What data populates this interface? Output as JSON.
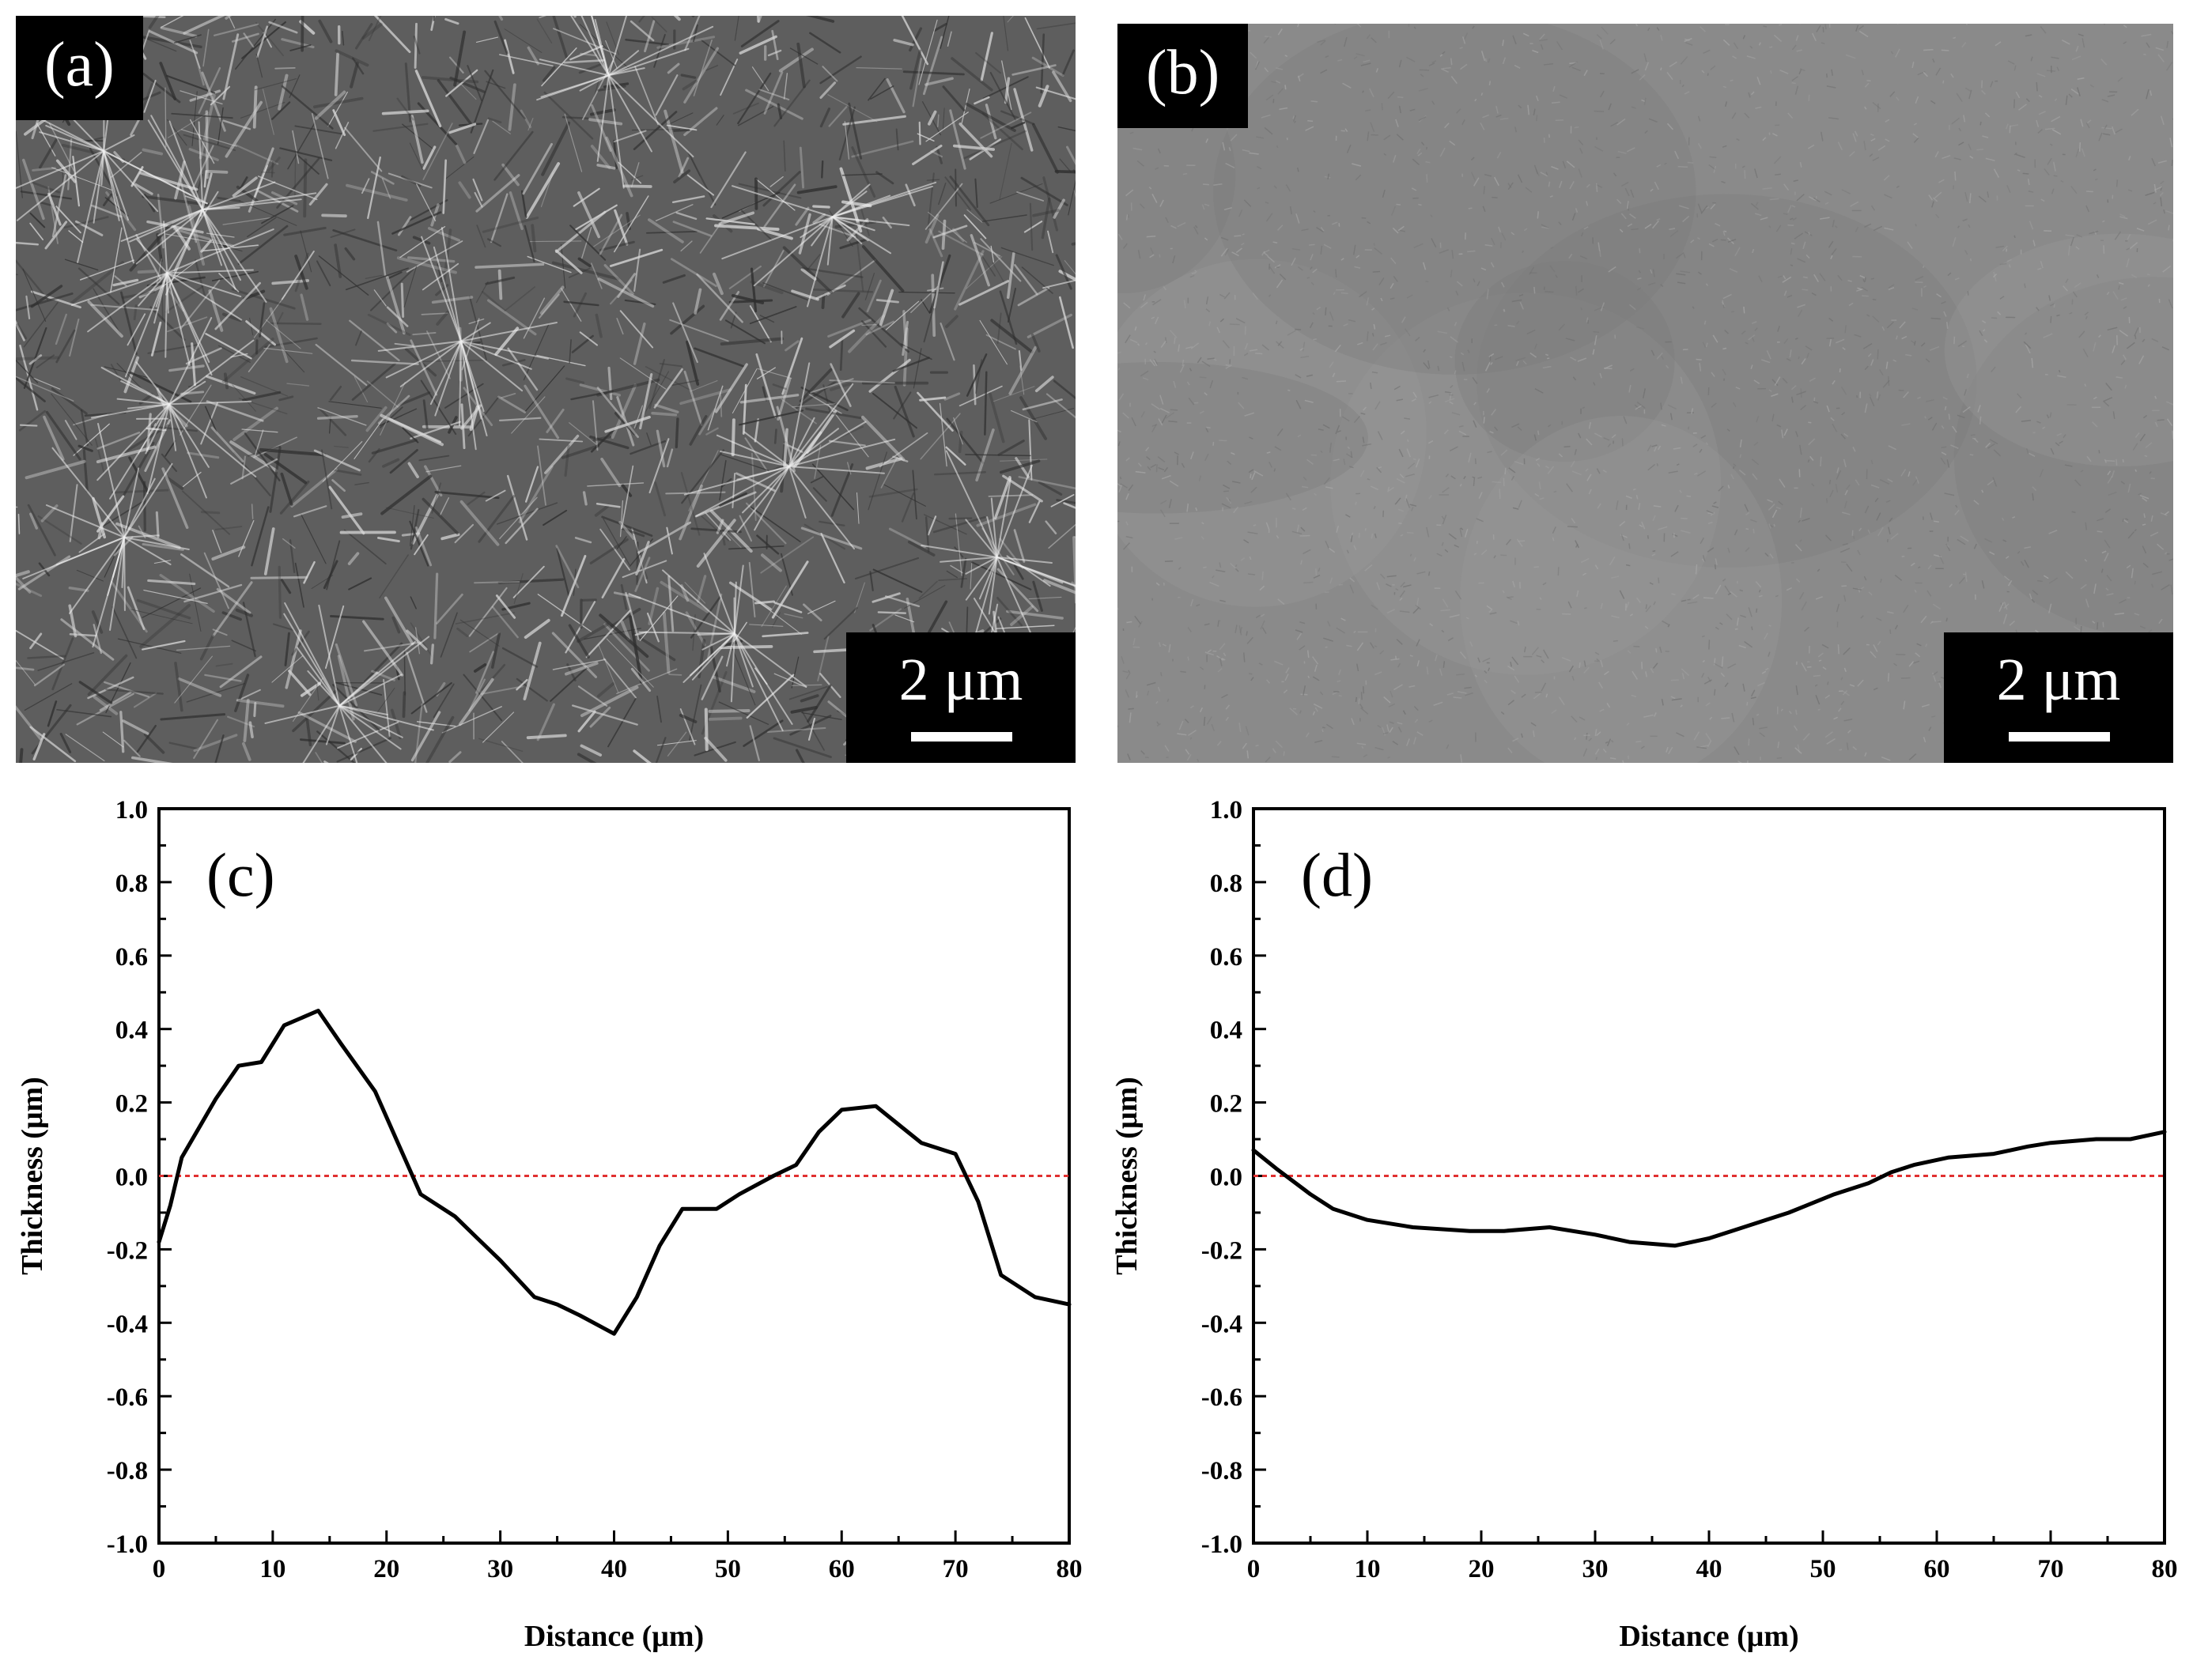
{
  "panels": {
    "a": {
      "label": "(a)",
      "scale_bar": "2 μm"
    },
    "b": {
      "label": "(b)",
      "scale_bar": "2 μm"
    }
  },
  "colors": {
    "line": "#000000",
    "reference_line": "#e03030"
  },
  "chart_data": [
    {
      "type": "line",
      "panel_label": "(c)",
      "xlabel": "Distance (μm)",
      "ylabel": "Thickness (μm)",
      "xlim": [
        0,
        80
      ],
      "ylim": [
        -1.0,
        1.0
      ],
      "x_ticks": [
        "0",
        "10",
        "20",
        "30",
        "40",
        "50",
        "60",
        "70",
        "80"
      ],
      "y_ticks": [
        "1.0",
        "0.8",
        "0.6",
        "0.4",
        "0.2",
        "0.0",
        "-0.2",
        "-0.4",
        "-0.6",
        "-0.8",
        "-1.0"
      ],
      "reference_line_y": 0.0,
      "grid": false,
      "series": [
        {
          "x": [
            0,
            1,
            2,
            5,
            7,
            9,
            11,
            14,
            16,
            19,
            21,
            23,
            26,
            28,
            30,
            33,
            35,
            37,
            40,
            42,
            44,
            46,
            49,
            51,
            54,
            56,
            58,
            60,
            63,
            65,
            67,
            70,
            72,
            74,
            77,
            80
          ],
          "y": [
            -0.18,
            -0.08,
            0.05,
            0.21,
            0.3,
            0.31,
            0.41,
            0.45,
            0.36,
            0.23,
            0.09,
            -0.05,
            -0.11,
            -0.17,
            -0.23,
            -0.33,
            -0.35,
            -0.38,
            -0.43,
            -0.33,
            -0.19,
            -0.09,
            -0.09,
            -0.05,
            0.0,
            0.03,
            0.12,
            0.18,
            0.19,
            0.14,
            0.09,
            0.06,
            -0.07,
            -0.27,
            -0.33,
            -0.35
          ]
        }
      ]
    },
    {
      "type": "line",
      "panel_label": "(d)",
      "xlabel": "Distance (μm)",
      "ylabel": "Thickness (μm)",
      "xlim": [
        0,
        80
      ],
      "ylim": [
        -1.0,
        1.0
      ],
      "x_ticks": [
        "0",
        "10",
        "20",
        "30",
        "40",
        "50",
        "60",
        "70",
        "80"
      ],
      "y_ticks": [
        "1.0",
        "0.8",
        "0.6",
        "0.4",
        "0.2",
        "0.0",
        "-0.2",
        "-0.4",
        "-0.6",
        "-0.8",
        "-1.0"
      ],
      "reference_line_y": 0.0,
      "grid": false,
      "series": [
        {
          "x": [
            0,
            2,
            5,
            7,
            10,
            14,
            19,
            22,
            26,
            30,
            33,
            37,
            40,
            42,
            45,
            47,
            51,
            54,
            56,
            58,
            61,
            65,
            68,
            70,
            74,
            77,
            80
          ],
          "y": [
            0.07,
            0.02,
            -0.05,
            -0.09,
            -0.12,
            -0.14,
            -0.15,
            -0.15,
            -0.14,
            -0.16,
            -0.18,
            -0.19,
            -0.17,
            -0.15,
            -0.12,
            -0.1,
            -0.05,
            -0.02,
            0.01,
            0.03,
            0.05,
            0.06,
            0.08,
            0.09,
            0.1,
            0.1,
            0.12
          ]
        }
      ]
    }
  ]
}
